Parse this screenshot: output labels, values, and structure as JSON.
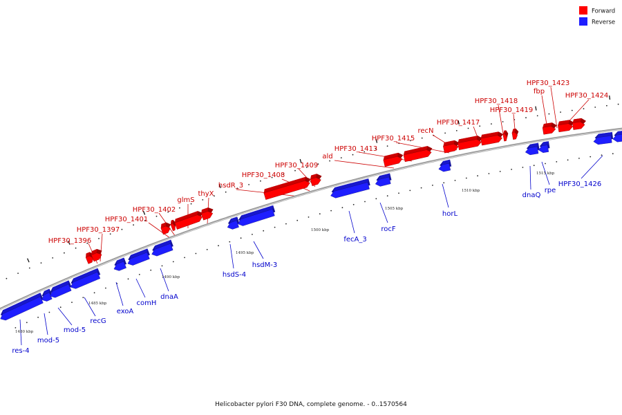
{
  "colors": {
    "forward": "#ff0000",
    "reverse": "#1e1eff",
    "forward_label": "#cc0000",
    "reverse_label": "#0000cc",
    "backbone": "#999999"
  },
  "legend": {
    "forward": "Forward",
    "reverse": "Reverse"
  },
  "title": "Helicobacter pylori F30 DNA, complete genome. - 0..1570564",
  "ticks": [
    "1480 kbp",
    "1485 kbp",
    "1490 kbp",
    "1495 kbp",
    "1500 kbp",
    "1505 kbp",
    "1510 kbp",
    "1515 kbp"
  ],
  "forward_genes": [
    "HPF30_1396",
    "HPF30_1397",
    "HPF30_1401",
    "HPF30_1402",
    "glmS",
    "thyX",
    "hsdR_3",
    "HPF30_1408",
    "HPF30_1409",
    "ald",
    "HPF30_1413",
    "HPF30_1415",
    "recN",
    "HPF30_1417",
    "HPF30_1418",
    "HPF30_1419",
    "HPF30_1423",
    "fbp",
    "HPF30_1424"
  ],
  "reverse_genes": [
    "res-4",
    "mod-5",
    "mod-5",
    "recG",
    "exoA",
    "comH",
    "dnaA",
    "hsdS-4",
    "hsdM-3",
    "fecA_3",
    "rocF",
    "horL",
    "dnaQ",
    "rpe",
    "HPF30_1426"
  ]
}
